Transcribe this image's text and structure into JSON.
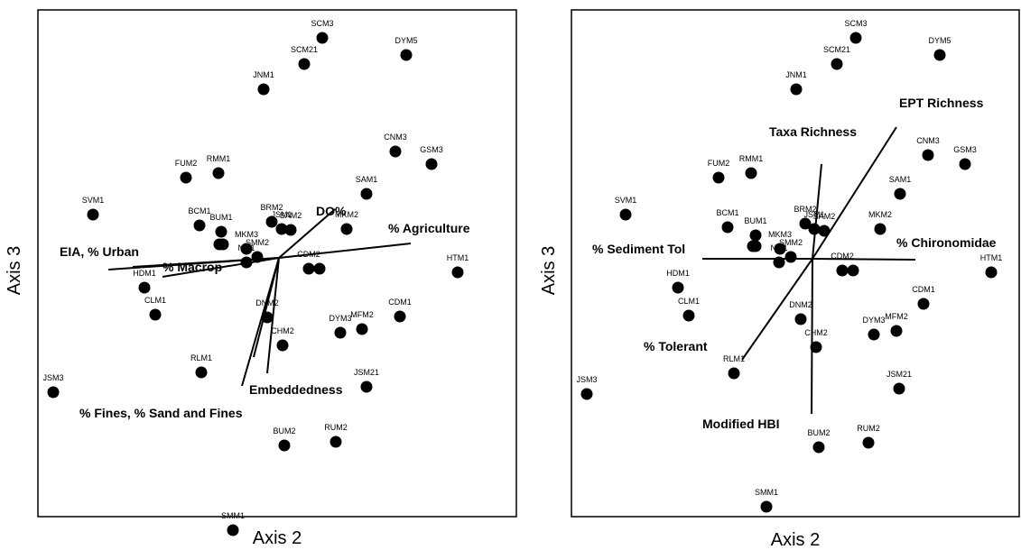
{
  "chart_data": [
    {
      "type": "scatter",
      "xlabel": "Axis 2",
      "ylabel": "Axis 3",
      "points": [
        {
          "label": "SCM3",
          "x": 0.0,
          "y": 0.0
        },
        {
          "label": "SCM21",
          "x": 0.0,
          "y": 0.0
        },
        {
          "label": "DYM5",
          "x": 0.0,
          "y": 0.0
        },
        {
          "label": "JNM1",
          "x": 0.0,
          "y": 0.0
        },
        {
          "label": "CNM3",
          "x": 0.0,
          "y": 0.0
        },
        {
          "label": "GSM3",
          "x": 0.0,
          "y": 0.0
        },
        {
          "label": "FUM2",
          "x": 0.0,
          "y": 0.0
        },
        {
          "label": "RMM1",
          "x": 0.0,
          "y": 0.0
        },
        {
          "label": "SAM1",
          "x": 0.0,
          "y": 0.0
        },
        {
          "label": "SVM1",
          "x": 0.0,
          "y": 0.0
        },
        {
          "label": "BCM1",
          "x": 0.0,
          "y": 0.0
        },
        {
          "label": "BUM1",
          "x": 0.0,
          "y": 0.0
        },
        {
          "label": "BRM2",
          "x": 0.0,
          "y": 0.0
        },
        {
          "label": "JSM1",
          "x": 0.0,
          "y": 0.0
        },
        {
          "label": "SAM2",
          "x": 0.0,
          "y": 0.0
        },
        {
          "label": "MKM2",
          "x": 0.0,
          "y": 0.0
        },
        {
          "label": "MKM3",
          "x": 0.0,
          "y": 0.0
        },
        {
          "label": "SMM2",
          "x": 0.0,
          "y": 0.0
        },
        {
          "label": "NM1",
          "x": 0.0,
          "y": 0.0
        },
        {
          "label": "CDM2",
          "x": 0.0,
          "y": 0.0
        },
        {
          "label": "HTM1",
          "x": 0.0,
          "y": 0.0
        },
        {
          "label": "HDM1",
          "x": 0.0,
          "y": 0.0
        },
        {
          "label": "CLM1",
          "x": 0.0,
          "y": 0.0
        },
        {
          "label": "CDM1",
          "x": 0.0,
          "y": 0.0
        },
        {
          "label": "DNM2",
          "x": 0.0,
          "y": 0.0
        },
        {
          "label": "DYM3",
          "x": 0.0,
          "y": 0.0
        },
        {
          "label": "MFM2",
          "x": 0.0,
          "y": 0.0
        },
        {
          "label": "CHM2",
          "x": 0.0,
          "y": 0.0
        },
        {
          "label": "RLM1",
          "x": 0.0,
          "y": 0.0
        },
        {
          "label": "JSM21",
          "x": 0.0,
          "y": 0.0
        },
        {
          "label": "JSM3",
          "x": 0.0,
          "y": 0.0
        },
        {
          "label": "BUM2",
          "x": 0.0,
          "y": 0.0
        },
        {
          "label": "RUM2",
          "x": 0.0,
          "y": 0.0
        },
        {
          "label": "SMM1",
          "x": 0.0,
          "y": 0.0
        }
      ],
      "vectors": [
        {
          "label": "DO%"
        },
        {
          "label": "% Agriculture"
        },
        {
          "label": "EIA, % Urban"
        },
        {
          "label": "% Macrop"
        },
        {
          "label": "Embeddedness"
        },
        {
          "label": "% Fines, % Sand and Fines"
        }
      ]
    },
    {
      "type": "scatter",
      "xlabel": "Axis 2",
      "ylabel": "Axis 3",
      "points": [
        {
          "label": "SCM3",
          "x": 0.0,
          "y": 0.0
        },
        {
          "label": "SCM21",
          "x": 0.0,
          "y": 0.0
        },
        {
          "label": "DYM5",
          "x": 0.0,
          "y": 0.0
        },
        {
          "label": "JNM1",
          "x": 0.0,
          "y": 0.0
        },
        {
          "label": "CNM3",
          "x": 0.0,
          "y": 0.0
        },
        {
          "label": "GSM3",
          "x": 0.0,
          "y": 0.0
        },
        {
          "label": "FUM2",
          "x": 0.0,
          "y": 0.0
        },
        {
          "label": "RMM1",
          "x": 0.0,
          "y": 0.0
        },
        {
          "label": "SAM1",
          "x": 0.0,
          "y": 0.0
        },
        {
          "label": "SVM1",
          "x": 0.0,
          "y": 0.0
        },
        {
          "label": "BCM1",
          "x": 0.0,
          "y": 0.0
        },
        {
          "label": "BUM1",
          "x": 0.0,
          "y": 0.0
        },
        {
          "label": "BRM2",
          "x": 0.0,
          "y": 0.0
        },
        {
          "label": "JSM1",
          "x": 0.0,
          "y": 0.0
        },
        {
          "label": "SAM2",
          "x": 0.0,
          "y": 0.0
        },
        {
          "label": "MKM2",
          "x": 0.0,
          "y": 0.0
        },
        {
          "label": "MKM3",
          "x": 0.0,
          "y": 0.0
        },
        {
          "label": "SMM2",
          "x": 0.0,
          "y": 0.0
        },
        {
          "label": "NM1",
          "x": 0.0,
          "y": 0.0
        },
        {
          "label": "CDM2",
          "x": 0.0,
          "y": 0.0
        },
        {
          "label": "HTM1",
          "x": 0.0,
          "y": 0.0
        },
        {
          "label": "HDM1",
          "x": 0.0,
          "y": 0.0
        },
        {
          "label": "CLM1",
          "x": 0.0,
          "y": 0.0
        },
        {
          "label": "CDM1",
          "x": 0.0,
          "y": 0.0
        },
        {
          "label": "DNM2",
          "x": 0.0,
          "y": 0.0
        },
        {
          "label": "DYM3",
          "x": 0.0,
          "y": 0.0
        },
        {
          "label": "MFM2",
          "x": 0.0,
          "y": 0.0
        },
        {
          "label": "CHM2",
          "x": 0.0,
          "y": 0.0
        },
        {
          "label": "RLM1",
          "x": 0.0,
          "y": 0.0
        },
        {
          "label": "JSM21",
          "x": 0.0,
          "y": 0.0
        },
        {
          "label": "JSM3",
          "x": 0.0,
          "y": 0.0
        },
        {
          "label": "BUM2",
          "x": 0.0,
          "y": 0.0
        },
        {
          "label": "RUM2",
          "x": 0.0,
          "y": 0.0
        },
        {
          "label": "SMM1",
          "x": 0.0,
          "y": 0.0
        }
      ],
      "vectors": [
        {
          "label": "EPT Richness"
        },
        {
          "label": "Taxa Richness"
        },
        {
          "label": "% Sediment Tol"
        },
        {
          "label": "% Chironomidae"
        },
        {
          "label": "% Tolerant"
        },
        {
          "label": "Modified HBI"
        }
      ]
    }
  ]
}
